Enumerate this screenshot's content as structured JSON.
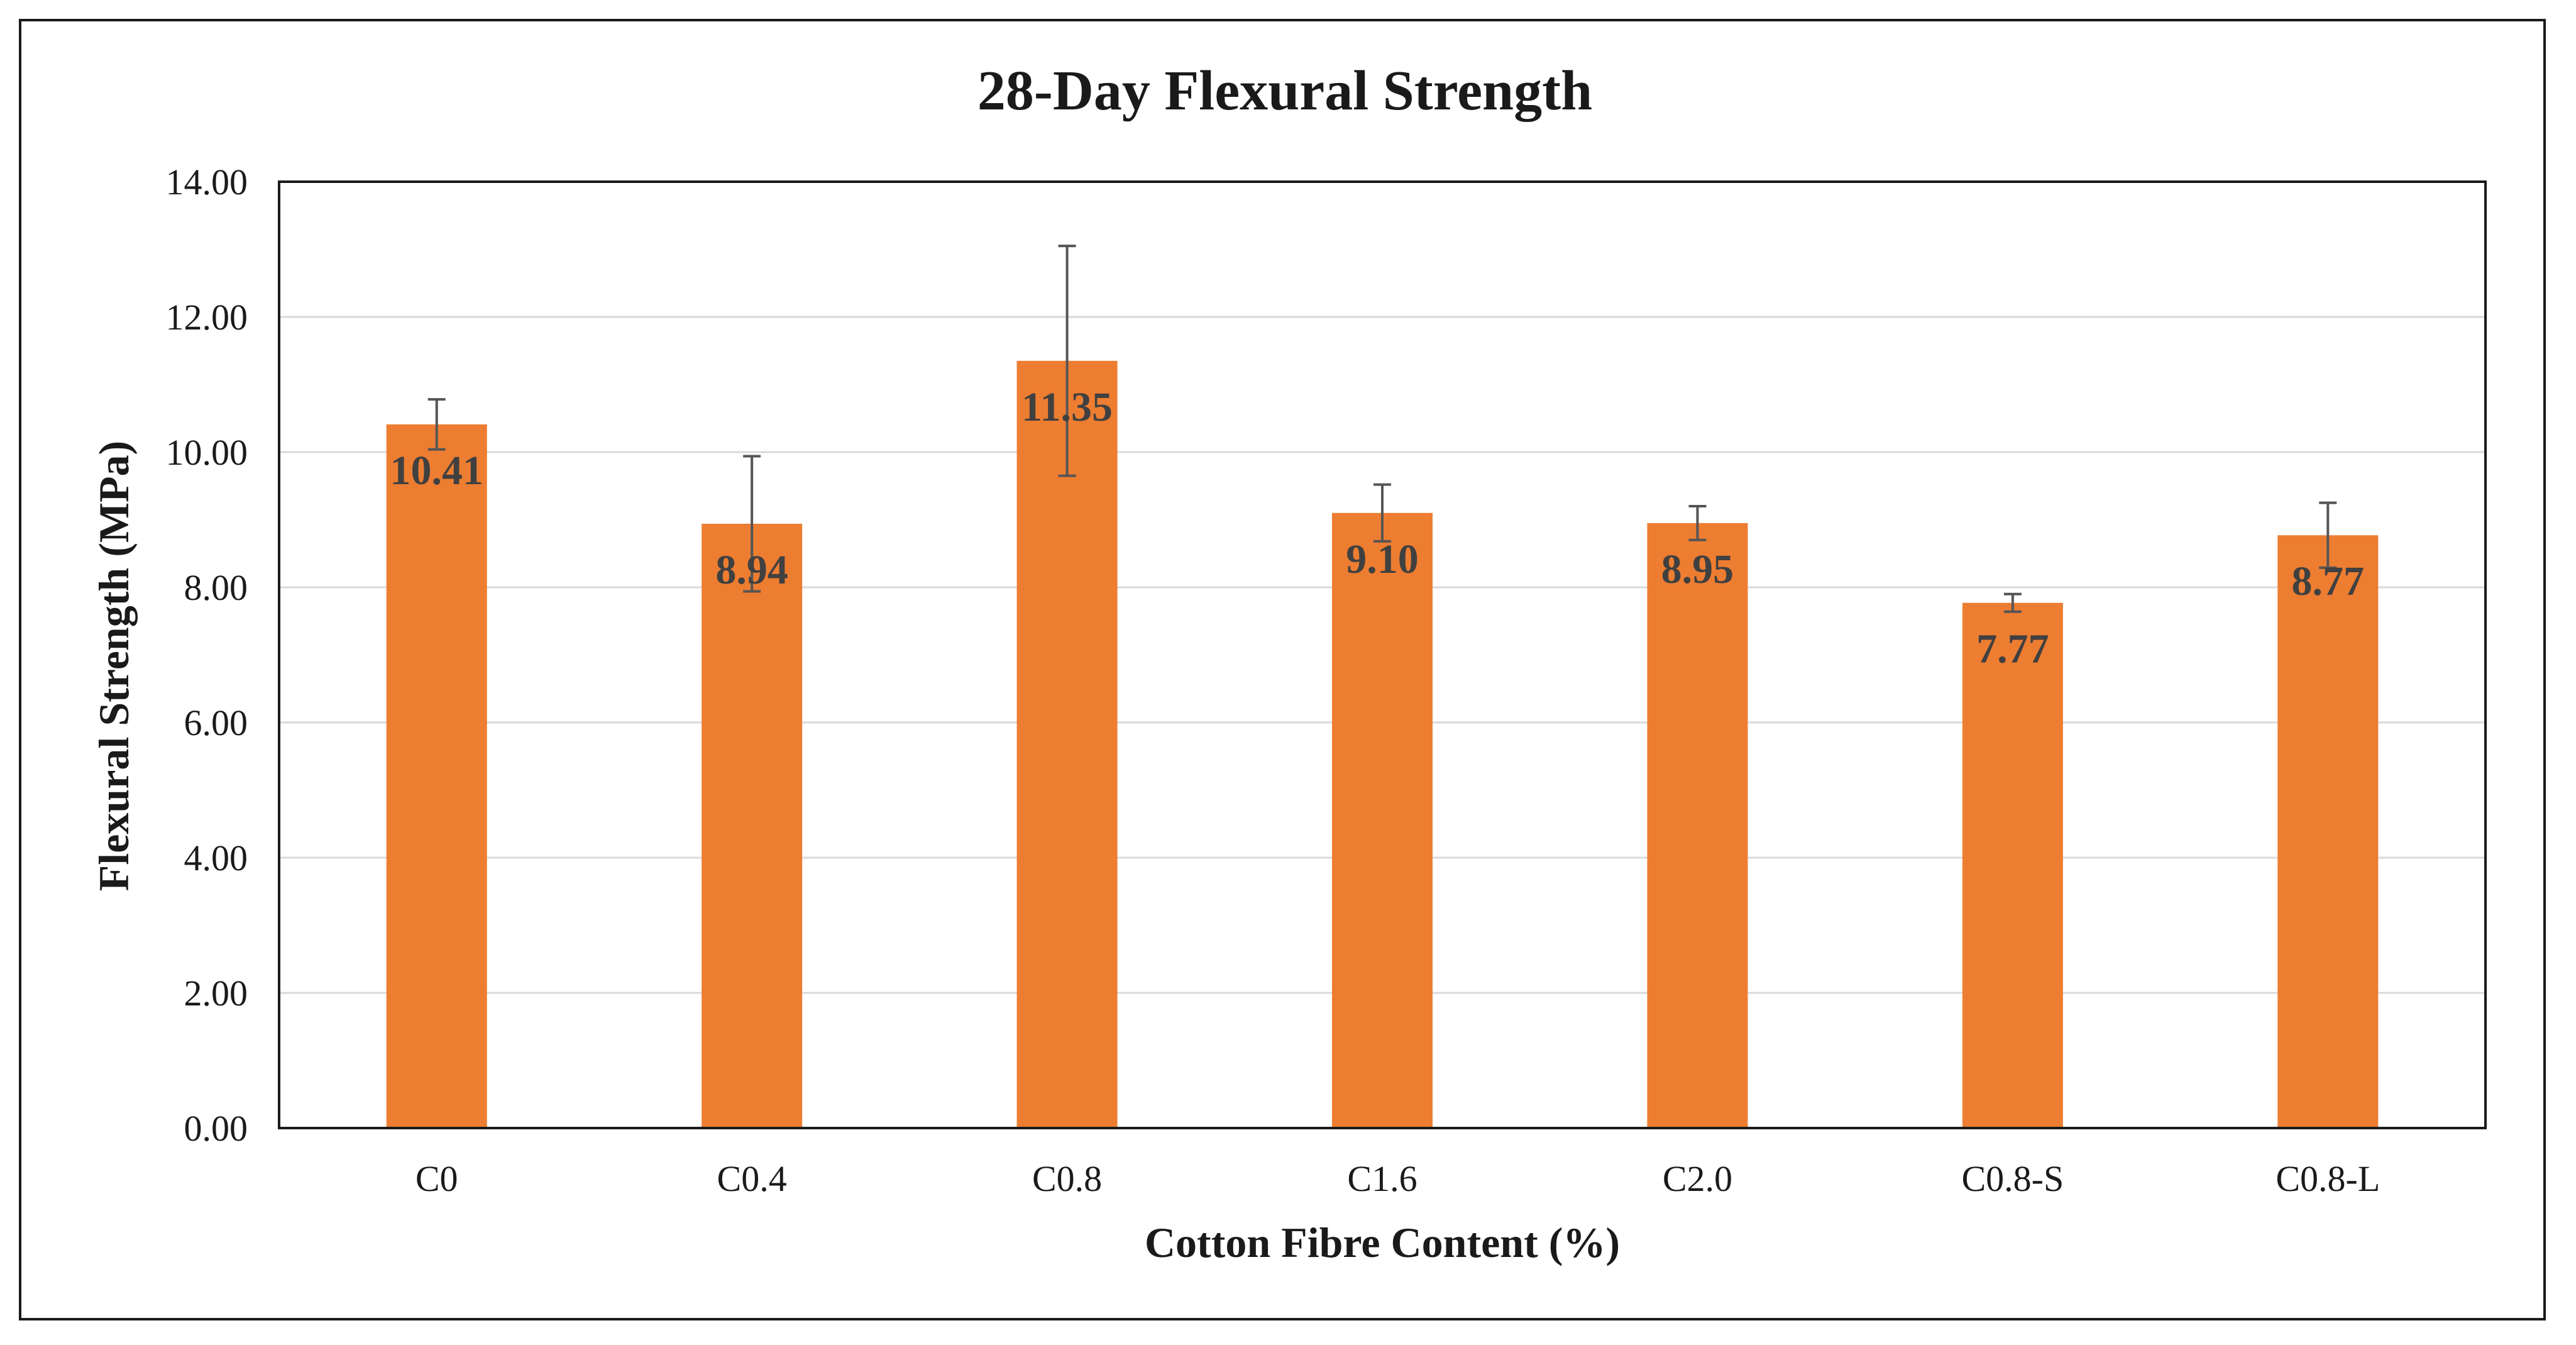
{
  "chart_data": {
    "type": "bar",
    "title": "28-Day Flexural Strength",
    "xlabel": "Cotton Fibre Content (%)",
    "ylabel": "Flexural Strength (MPa)",
    "categories": [
      "C0",
      "C0.4",
      "C0.8",
      "C1.6",
      "C2.0",
      "C0.8-S",
      "C0.8-L"
    ],
    "values": [
      10.41,
      8.94,
      11.35,
      9.1,
      8.95,
      7.77,
      8.77
    ],
    "data_labels": [
      "10.41",
      "8.94",
      "11.35",
      "9.10",
      "8.95",
      "7.77",
      "8.77"
    ],
    "error_bars": [
      0.37,
      1.0,
      1.7,
      0.42,
      0.25,
      0.13,
      0.48
    ],
    "ylim": [
      0,
      14
    ],
    "yticks": [
      0,
      2,
      4,
      6,
      8,
      10,
      12,
      14
    ],
    "ytick_labels": [
      "0.00",
      "2.00",
      "4.00",
      "6.00",
      "8.00",
      "10.00",
      "12.00",
      "14.00"
    ],
    "grid": true,
    "legend": "none",
    "colors": {
      "bar": "#ED7D31",
      "grid": "#d9d9d9",
      "axis": "#1a1a1a",
      "error_bar": "#555555"
    }
  }
}
